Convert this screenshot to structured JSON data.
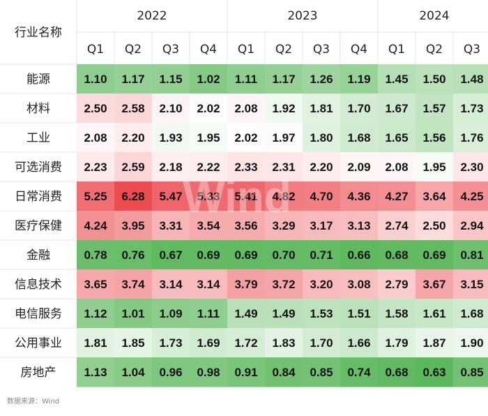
{
  "chart_data": {
    "type": "heatmap",
    "row_header": "行业名称",
    "years": [
      {
        "label": "2022",
        "quarters": [
          "Q1",
          "Q2",
          "Q3",
          "Q4"
        ]
      },
      {
        "label": "2023",
        "quarters": [
          "Q1",
          "Q2",
          "Q3",
          "Q4"
        ]
      },
      {
        "label": "2024",
        "quarters": [
          "Q1",
          "Q2",
          "Q3"
        ]
      }
    ],
    "rows": [
      {
        "name": "能源",
        "values": [
          1.1,
          1.17,
          1.15,
          1.02,
          1.11,
          1.17,
          1.26,
          1.19,
          1.45,
          1.5,
          1.48
        ]
      },
      {
        "name": "材料",
        "values": [
          2.5,
          2.58,
          2.1,
          2.02,
          2.08,
          1.92,
          1.81,
          1.7,
          1.67,
          1.57,
          1.73
        ]
      },
      {
        "name": "工业",
        "values": [
          2.08,
          2.2,
          1.93,
          1.95,
          2.02,
          1.97,
          1.8,
          1.68,
          1.65,
          1.56,
          1.76
        ]
      },
      {
        "name": "可选消费",
        "values": [
          2.23,
          2.59,
          2.18,
          2.22,
          2.33,
          2.31,
          2.2,
          2.09,
          2.08,
          1.95,
          2.3
        ]
      },
      {
        "name": "日常消费",
        "values": [
          5.25,
          6.28,
          5.47,
          5.33,
          5.41,
          4.82,
          4.7,
          4.36,
          4.27,
          3.64,
          4.25
        ]
      },
      {
        "name": "医疗保健",
        "values": [
          4.24,
          3.95,
          3.31,
          3.54,
          3.56,
          3.29,
          3.17,
          3.13,
          2.74,
          2.5,
          2.94
        ]
      },
      {
        "name": "金融",
        "values": [
          0.78,
          0.76,
          0.67,
          0.69,
          0.69,
          0.7,
          0.71,
          0.66,
          0.68,
          0.69,
          0.81
        ]
      },
      {
        "name": "信息技术",
        "values": [
          3.65,
          3.74,
          3.14,
          3.14,
          3.79,
          3.72,
          3.2,
          3.08,
          2.79,
          3.67,
          3.15
        ]
      },
      {
        "name": "电信服务",
        "values": [
          1.12,
          1.01,
          1.09,
          1.11,
          1.49,
          1.49,
          1.53,
          1.51,
          1.58,
          1.61,
          1.68
        ]
      },
      {
        "name": "公用事业",
        "values": [
          1.81,
          1.85,
          1.73,
          1.69,
          1.72,
          1.83,
          1.7,
          1.66,
          1.79,
          1.87,
          1.9
        ]
      },
      {
        "name": "房地产",
        "values": [
          1.13,
          1.04,
          0.96,
          0.98,
          0.91,
          0.84,
          0.85,
          0.74,
          0.68,
          0.63,
          0.85
        ]
      }
    ],
    "color_scale": {
      "low": "#5cb85c",
      "mid": "#ffffff",
      "high": "#ec4b50",
      "mid_value": 2.0
    }
  },
  "watermark": "Wind",
  "source": "数据来源：Wind"
}
